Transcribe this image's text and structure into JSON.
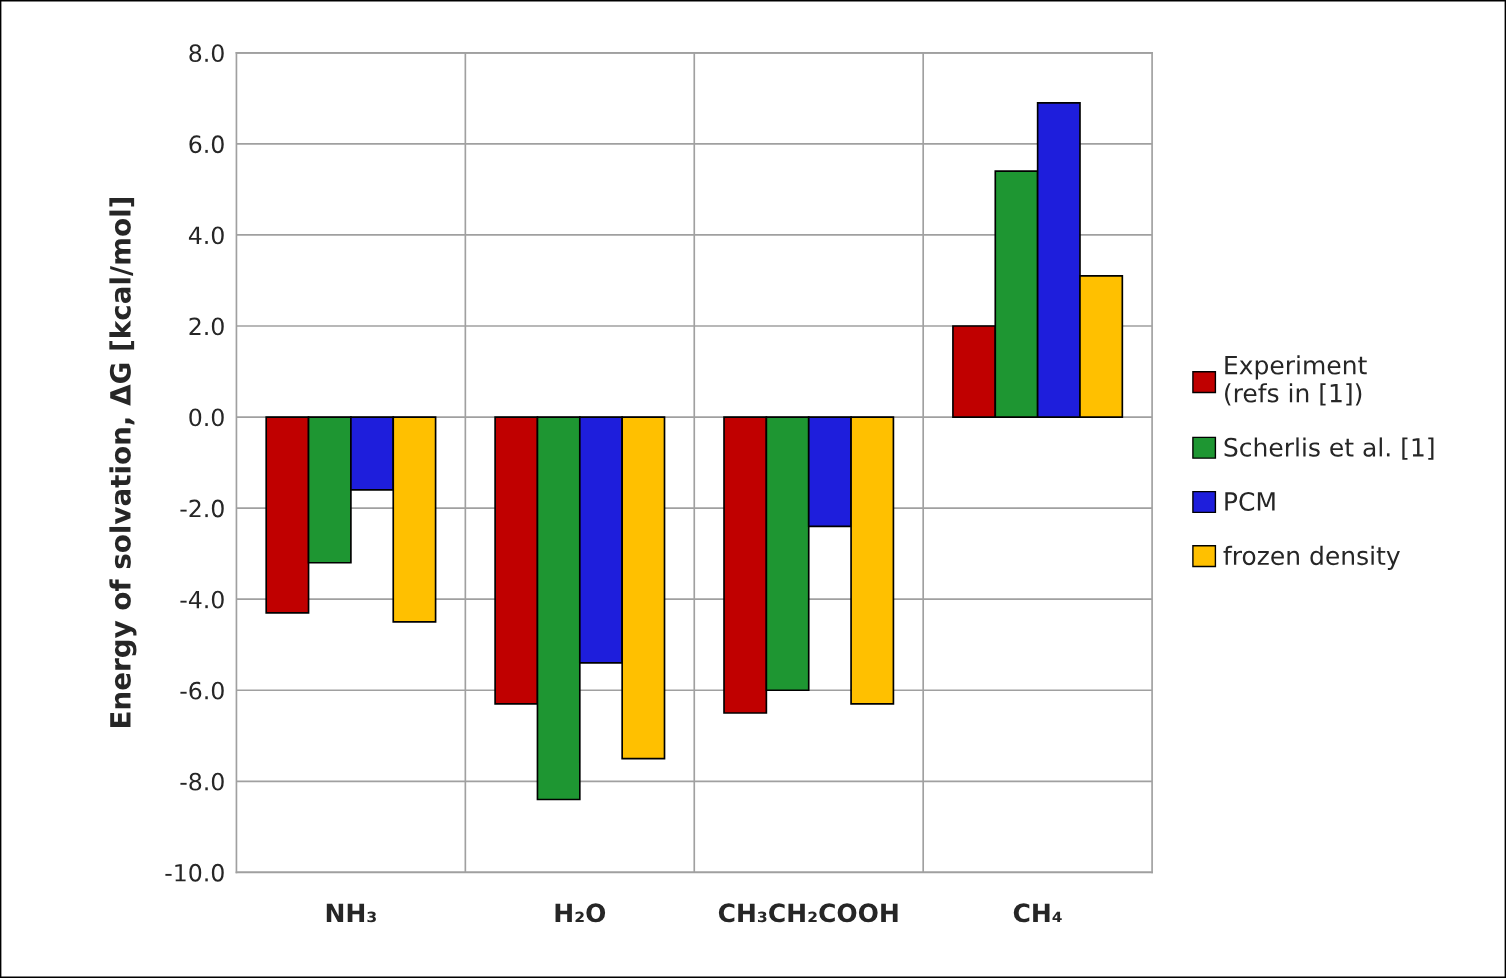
{
  "chart_data": {
    "type": "bar",
    "ylabel": "Energy of solvation, ΔG [kcal/mol]",
    "categories": [
      "NH₃",
      "H₂O",
      "CH₃CH₂COOH",
      "CH₄"
    ],
    "series": [
      {
        "name": "Experiment\n(refs in [1])",
        "color": "#c00000",
        "values": [
          -4.3,
          -6.3,
          -6.5,
          2.0
        ]
      },
      {
        "name": "Scherlis et al. [1]",
        "color": "#1e9632",
        "values": [
          -3.2,
          -8.4,
          -6.0,
          5.4
        ]
      },
      {
        "name": "PCM",
        "color": "#1e1edc",
        "values": [
          -1.6,
          -5.4,
          -2.4,
          6.9
        ]
      },
      {
        "name": "frozen density",
        "color": "#ffc000",
        "values": [
          -4.5,
          -7.5,
          -6.3,
          3.1
        ]
      }
    ],
    "ylim": [
      -10,
      8
    ],
    "yticks": [
      {
        "value": -10,
        "label": "-10.0"
      },
      {
        "value": -8,
        "label": "-8.0"
      },
      {
        "value": -6,
        "label": "-6.0"
      },
      {
        "value": -4,
        "label": "-4.0"
      },
      {
        "value": -2,
        "label": "-2.0"
      },
      {
        "value": 0,
        "label": "0.0"
      },
      {
        "value": 2,
        "label": "2.0"
      },
      {
        "value": 4,
        "label": "4.0"
      },
      {
        "value": 6,
        "label": "6.0"
      },
      {
        "value": 8,
        "label": "8.0"
      }
    ],
    "grid": true,
    "legend": "right"
  }
}
